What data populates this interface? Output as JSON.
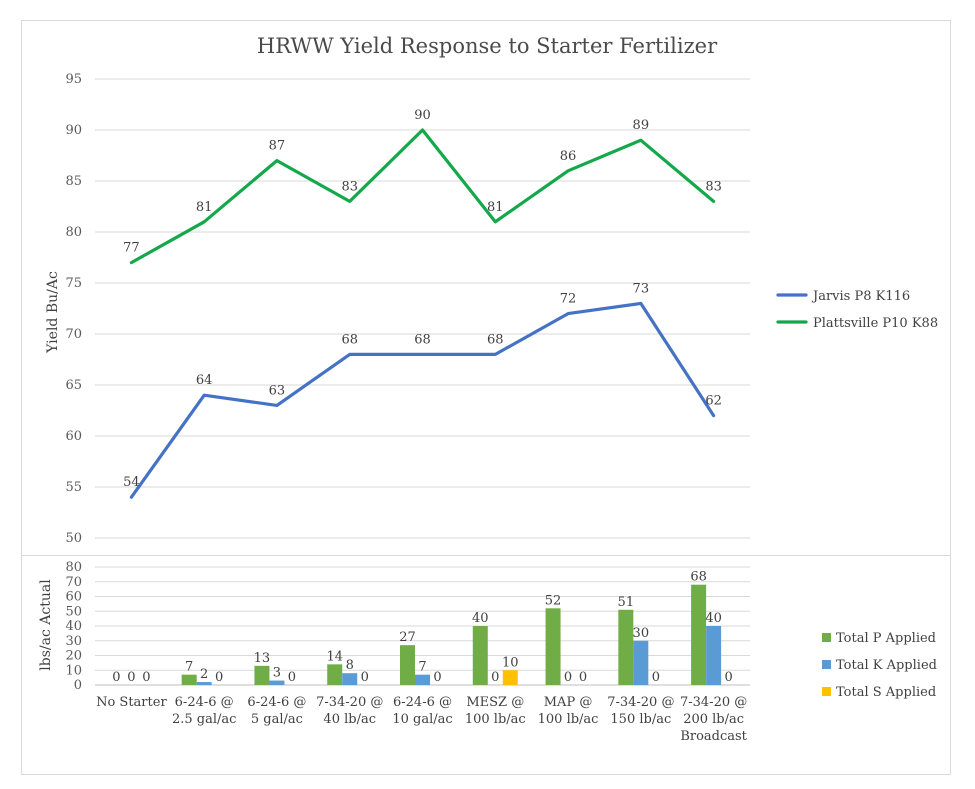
{
  "chart_data": [
    {
      "type": "line",
      "title": "HRWW Yield Response to Starter Fertilizer",
      "ylabel": "Yield Bu/Ac",
      "ylim": [
        50,
        95
      ],
      "yticks": [
        50,
        55,
        60,
        65,
        70,
        75,
        80,
        85,
        90,
        95
      ],
      "grid": true,
      "legend_position": "right",
      "categories": [
        "No Starter",
        "6-24-6 @ 2.5 gal/ac",
        "6-24-6 @ 5 gal/ac",
        "7-34-20 @ 40 lb/ac",
        "6-24-6 @ 10 gal/ac",
        "MESZ @ 100 lb/ac",
        "MAP @ 100 lb/ac",
        "7-34-20 @ 150 lb/ac",
        "7-34-20 @ 200 lb/ac Broadcast"
      ],
      "series": [
        {
          "name": "Jarvis P8 K116",
          "color": "#4472c4",
          "values": [
            54,
            64,
            63,
            68,
            68,
            68,
            72,
            73,
            62
          ]
        },
        {
          "name": "Plattsville P10 K88",
          "color": "#13a84a",
          "values": [
            77,
            81,
            87,
            83,
            90,
            81,
            86,
            89,
            83
          ]
        }
      ]
    },
    {
      "type": "bar",
      "ylabel": "lbs/ac Actual",
      "ylim": [
        0,
        80
      ],
      "yticks": [
        0,
        10,
        20,
        30,
        40,
        50,
        60,
        70,
        80
      ],
      "grid": true,
      "legend_position": "right",
      "categories": [
        [
          "No Starter"
        ],
        [
          "6-24-6 @",
          "2.5 gal/ac"
        ],
        [
          "6-24-6 @",
          "5 gal/ac"
        ],
        [
          "7-34-20 @",
          "40 lb/ac"
        ],
        [
          "6-24-6 @",
          "10 gal/ac"
        ],
        [
          "MESZ @",
          "100 lb/ac"
        ],
        [
          "MAP @",
          "100 lb/ac"
        ],
        [
          "7-34-20 @",
          "150 lb/ac"
        ],
        [
          "7-34-20 @",
          "200 lb/ac",
          "Broadcast"
        ]
      ],
      "series": [
        {
          "name": "Total P Applied",
          "color": "#70ad47",
          "values": [
            0,
            7,
            13,
            14,
            27,
            40,
            52,
            51,
            68
          ]
        },
        {
          "name": "Total K Applied",
          "color": "#5b9bd5",
          "values": [
            0,
            2,
            3,
            8,
            7,
            0,
            0,
            30,
            40
          ]
        },
        {
          "name": "Total S Applied",
          "color": "#ffc000",
          "values": [
            0,
            0,
            0,
            0,
            0,
            10,
            0,
            0,
            0
          ]
        }
      ]
    }
  ]
}
